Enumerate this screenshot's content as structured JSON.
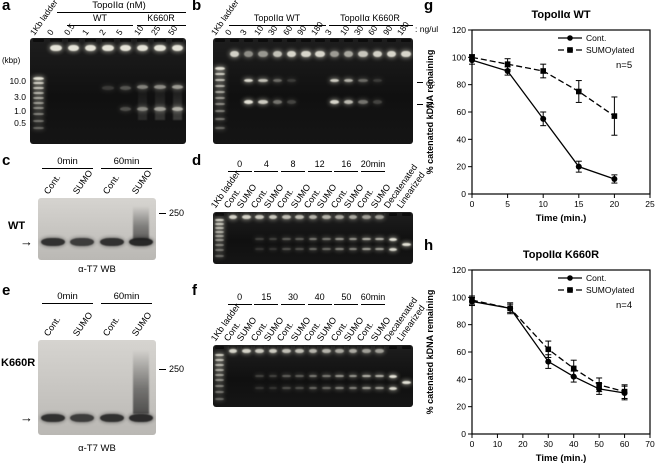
{
  "panel_a": {
    "label": "a",
    "ladder": "1Kb ladder",
    "header": "TopoIIα (nM)",
    "groups": [
      "WT",
      "K660R"
    ],
    "lanes": [
      "0",
      "0.5",
      "1",
      "2",
      "5",
      "10",
      "25",
      "50"
    ],
    "kbp_label": "(kbp)",
    "size_markers": [
      "10.0",
      "3.0",
      "1.0",
      "0.5"
    ]
  },
  "panel_b": {
    "label": "b",
    "ladder": "1Kb ladder",
    "groups": [
      "TopoIIα WT",
      "TopoIIα K660R"
    ],
    "lanes_wt": [
      "0",
      "3",
      "10",
      "30",
      "60",
      "90",
      "180"
    ],
    "lanes_k660r": [
      "3",
      "10",
      "30",
      "60",
      "90",
      "180"
    ],
    "unit": ": ng/ul",
    "band_markers": [
      "oc",
      "cc"
    ]
  },
  "panel_c": {
    "label": "c",
    "times": [
      "0min",
      "60min"
    ],
    "lanes": [
      "Cont.",
      "SUMO",
      "Cont.",
      "SUMO"
    ],
    "row_label": "WT",
    "size_marker": "250",
    "caption": "α-T7 WB"
  },
  "panel_d": {
    "label": "d",
    "ladder": "1Kb ladder",
    "times": [
      "0",
      "4",
      "8",
      "12",
      "16",
      "20min"
    ],
    "pair": [
      "Cont.",
      "SUMO"
    ],
    "extras": [
      "Decatenated",
      "Linearized"
    ]
  },
  "panel_e": {
    "label": "e",
    "times": [
      "0min",
      "60min"
    ],
    "lanes": [
      "Cont.",
      "SUMO",
      "Cont.",
      "SUMO"
    ],
    "row_label": "K660R",
    "size_marker": "250",
    "caption": "α-T7 WB"
  },
  "panel_f": {
    "label": "f",
    "ladder": "1Kb ladder",
    "times": [
      "0",
      "15",
      "30",
      "40",
      "50",
      "60min"
    ],
    "pair": [
      "Cont.",
      "SUMO"
    ],
    "extras": [
      "Decatenated",
      "Linearized"
    ]
  },
  "chart_data": [
    {
      "id": "g",
      "panel_label": "g",
      "type": "line",
      "title": "TopoIIα WT",
      "xlabel": "Time (min.)",
      "ylabel": "% catenated kDNA remaining",
      "xlim": [
        0,
        25
      ],
      "ylim": [
        0,
        120
      ],
      "xticks": [
        0,
        5,
        10,
        15,
        20,
        25
      ],
      "yticks": [
        0,
        20,
        40,
        60,
        80,
        100,
        120
      ],
      "annotation": "n=5",
      "grid": false,
      "legend_position": "top-right",
      "series": [
        {
          "name": "Cont.",
          "marker": "circle",
          "line": "solid",
          "x": [
            0,
            5,
            10,
            15,
            20
          ],
          "y": [
            98,
            90,
            55,
            20,
            11
          ],
          "yerr": [
            3,
            3,
            5,
            4,
            3
          ]
        },
        {
          "name": "SUMOylated",
          "marker": "square",
          "line": "dashed",
          "x": [
            0,
            5,
            10,
            15,
            20
          ],
          "y": [
            100,
            95,
            90,
            75,
            57
          ],
          "yerr": [
            2,
            4,
            5,
            8,
            14
          ]
        }
      ]
    },
    {
      "id": "h",
      "panel_label": "h",
      "type": "line",
      "title": "TopoIIα K660R",
      "xlabel": "Time (min.)",
      "ylabel": "% catenated kDNA remaining",
      "xlim": [
        0,
        70
      ],
      "ylim": [
        0,
        120
      ],
      "xticks": [
        0,
        10,
        20,
        30,
        40,
        50,
        60,
        70
      ],
      "yticks": [
        0,
        20,
        40,
        60,
        80,
        100,
        120
      ],
      "annotation": "n=4",
      "grid": false,
      "legend_position": "top-right",
      "series": [
        {
          "name": "Cont.",
          "marker": "circle",
          "line": "solid",
          "x": [
            0,
            15,
            30,
            40,
            50,
            60
          ],
          "y": [
            97,
            92,
            53,
            42,
            33,
            30
          ],
          "yerr": [
            3,
            3,
            5,
            4,
            4,
            5
          ]
        },
        {
          "name": "SUMOylated",
          "marker": "square",
          "line": "dashed",
          "x": [
            0,
            15,
            30,
            40,
            50,
            60
          ],
          "y": [
            98,
            92,
            62,
            48,
            36,
            31
          ],
          "yerr": [
            3,
            4,
            6,
            6,
            5,
            5
          ]
        }
      ]
    }
  ]
}
